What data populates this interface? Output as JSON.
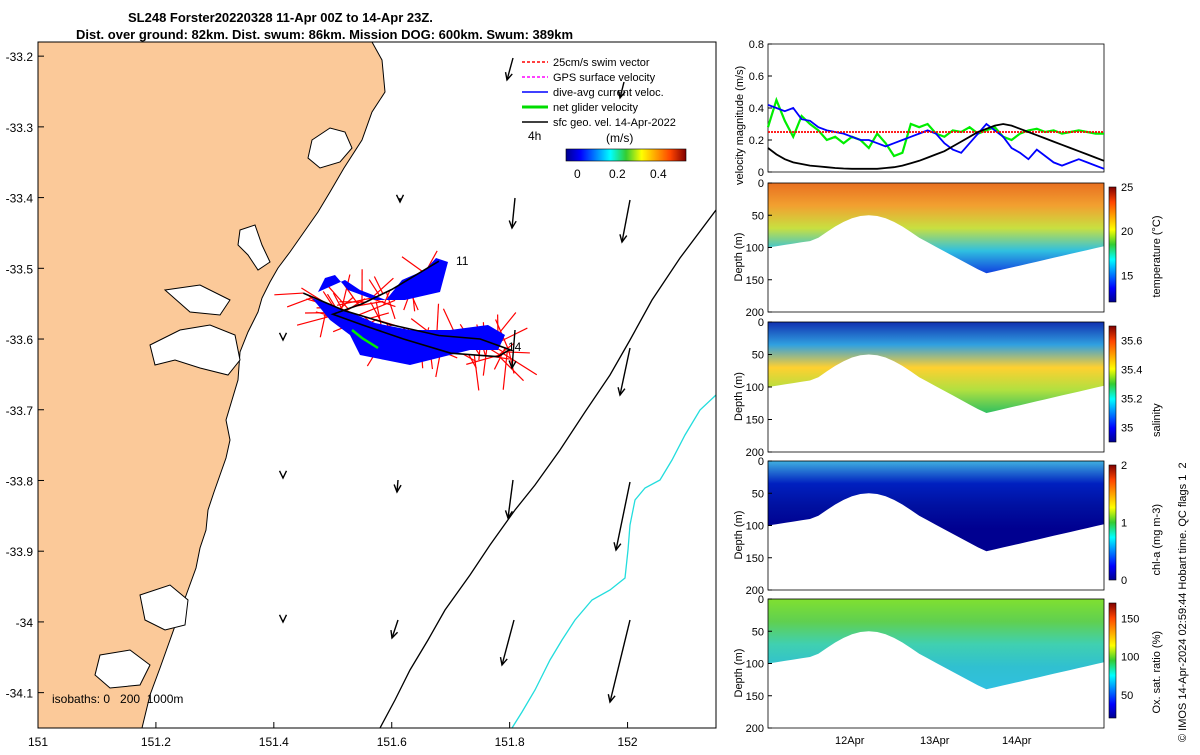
{
  "title": {
    "line1": "SL248 Forster20220328 11-Apr 00Z to 14-Apr 23Z.",
    "line2": "Dist. over ground: 82km. Dist. swum: 86km. Mission DOG: 600km. Swum: 389km"
  },
  "side_caption": "© IMOS 14-Apr-2024 02:59:44 Hobart time. QC flags 1  2",
  "map": {
    "legend": [
      {
        "label": "25cm/s swim vector",
        "color": "#ff0000"
      },
      {
        "label": "GPS surface velocity",
        "color": "#ff00ff"
      },
      {
        "label": "dive-avg current veloc.",
        "color": "#0000ff"
      },
      {
        "label": "net glider velocity",
        "color": "#00dd00"
      },
      {
        "label": "sfc geo. vel. 14-Apr-2022",
        "color": "#000000"
      }
    ],
    "time_label": "4h",
    "colorbar_unit": "(m/s)",
    "colorbar_ticks": [
      "0",
      "0.2",
      "0.4"
    ],
    "isobath_label": "isobaths: 0   200  1000m",
    "day_labels": [
      "11",
      "14"
    ],
    "land_color": "#fbc999"
  },
  "chart_data": [
    {
      "type": "scatter",
      "name": "map",
      "xlim": [
        151,
        152.15
      ],
      "ylim": [
        -34.15,
        -33.18
      ],
      "xticks": [
        151,
        151.2,
        151.4,
        151.6,
        151.8,
        152
      ],
      "xtick_labels": [
        "151",
        "151.2",
        "151.4",
        "151.6",
        "151.8",
        "152"
      ],
      "yticks": [
        -33.2,
        -33.3,
        -33.4,
        -33.5,
        -33.6,
        -33.7,
        -33.8,
        -33.9,
        -34,
        -34.1
      ],
      "ytick_labels": [
        "-33.2",
        "-33.3",
        "-33.4",
        "-33.5",
        "-33.6",
        "-33.7",
        "-33.8",
        "-33.9",
        "-34",
        "-34.1"
      ],
      "glider_track": {
        "lon": [
          151.45,
          151.52,
          151.6,
          151.68,
          151.75,
          151.8,
          151.78,
          151.7,
          151.62,
          151.55,
          151.5,
          151.55,
          151.6,
          151.68
        ],
        "lat": [
          -33.535,
          -33.56,
          -33.58,
          -33.595,
          -33.6,
          -33.615,
          -33.625,
          -33.62,
          -33.6,
          -33.58,
          -33.565,
          -33.55,
          -33.53,
          -33.49
        ]
      }
    },
    {
      "type": "line",
      "name": "velocity",
      "ylabel": "velocity magnitude (m/s)",
      "ylim": [
        0,
        0.8
      ],
      "yticks": [
        0,
        0.2,
        0.4,
        0.6,
        0.8
      ],
      "ytick_labels": [
        "0",
        "0.2",
        "0.4",
        "0.6",
        "0.8"
      ],
      "x": [
        11.0,
        11.1,
        11.2,
        11.3,
        11.4,
        11.5,
        11.6,
        11.7,
        11.8,
        11.9,
        12.0,
        12.1,
        12.2,
        12.3,
        12.4,
        12.5,
        12.6,
        12.7,
        12.8,
        12.9,
        13.0,
        13.1,
        13.2,
        13.3,
        13.4,
        13.5,
        13.6,
        13.7,
        13.8,
        13.9,
        14.0,
        14.1,
        14.2,
        14.3,
        14.4,
        14.5,
        14.6,
        14.7,
        14.8,
        14.9,
        15.0
      ],
      "series": [
        {
          "color": "#00ee00",
          "values": [
            0.28,
            0.45,
            0.32,
            0.22,
            0.35,
            0.3,
            0.26,
            0.2,
            0.22,
            0.18,
            0.22,
            0.2,
            0.15,
            0.24,
            0.18,
            0.1,
            0.12,
            0.3,
            0.28,
            0.3,
            0.24,
            0.22,
            0.26,
            0.25,
            0.28,
            0.24,
            0.26,
            0.28,
            0.22,
            0.2,
            0.24,
            0.26,
            0.27,
            0.25,
            0.26,
            0.24,
            0.25,
            0.26,
            0.25,
            0.24,
            0.24
          ]
        },
        {
          "color": "#0000ff",
          "values": [
            0.42,
            0.4,
            0.38,
            0.4,
            0.33,
            0.32,
            0.28,
            0.26,
            0.25,
            0.24,
            0.22,
            0.2,
            0.2,
            0.18,
            0.16,
            0.18,
            0.2,
            0.22,
            0.24,
            0.26,
            0.24,
            0.18,
            0.14,
            0.12,
            0.18,
            0.24,
            0.3,
            0.26,
            0.22,
            0.15,
            0.12,
            0.08,
            0.14,
            0.1,
            0.06,
            0.04,
            0.06,
            0.08,
            0.06,
            0.04,
            0.02
          ]
        },
        {
          "color": "#ff0000",
          "values": [
            0.25,
            0.25,
            0.25,
            0.25,
            0.25,
            0.25,
            0.25,
            0.25,
            0.25,
            0.25,
            0.25,
            0.25,
            0.25,
            0.25,
            0.25,
            0.25,
            0.25,
            0.25,
            0.25,
            0.25,
            0.25,
            0.25,
            0.25,
            0.25,
            0.25,
            0.25,
            0.25,
            0.25,
            0.25,
            0.25,
            0.25,
            0.25,
            0.25,
            0.25,
            0.25,
            0.25,
            0.25,
            0.25,
            0.25,
            0.25,
            0.25
          ]
        },
        {
          "color": "#000000",
          "values": [
            0.15,
            0.11,
            0.08,
            0.06,
            0.05,
            0.04,
            0.035,
            0.03,
            0.025,
            0.022,
            0.02,
            0.02,
            0.02,
            0.02,
            0.025,
            0.03,
            0.04,
            0.055,
            0.07,
            0.09,
            0.11,
            0.13,
            0.16,
            0.19,
            0.22,
            0.25,
            0.27,
            0.29,
            0.3,
            0.29,
            0.27,
            0.25,
            0.23,
            0.21,
            0.19,
            0.17,
            0.15,
            0.13,
            0.11,
            0.09,
            0.07
          ]
        }
      ]
    },
    {
      "type": "heatmap",
      "name": "temperature",
      "ylabel": "Depth (m)",
      "colorbar_label": "temperature (°C)",
      "colorbar_ticks": [
        "15",
        "20",
        "25"
      ],
      "colorbar_range": [
        12,
        25
      ],
      "ylim": [
        0,
        200
      ],
      "yticks": [
        "0",
        "50",
        "100",
        "150",
        "200"
      ]
    },
    {
      "type": "heatmap",
      "name": "salinity",
      "ylabel": "Depth (m)",
      "colorbar_label": "salinity",
      "colorbar_ticks": [
        "35",
        "35.2",
        "35.4",
        "35.6"
      ],
      "colorbar_range": [
        34.9,
        35.7
      ],
      "ylim": [
        0,
        200
      ],
      "yticks": [
        "0",
        "50",
        "100",
        "150",
        "200"
      ]
    },
    {
      "type": "heatmap",
      "name": "chl-a",
      "ylabel": "Depth (m)",
      "colorbar_label": "chl-a (mg m-3)",
      "colorbar_ticks": [
        "0",
        "1",
        "2"
      ],
      "colorbar_range": [
        0,
        2
      ],
      "ylim": [
        0,
        200
      ],
      "yticks": [
        "0",
        "50",
        "100",
        "150",
        "200"
      ]
    },
    {
      "type": "heatmap",
      "name": "oxygen",
      "ylabel": "Depth (m)",
      "colorbar_label": "Ox. sat. ratio (%)",
      "colorbar_ticks": [
        "50",
        "100",
        "150"
      ],
      "colorbar_range": [
        20,
        170
      ],
      "ylim": [
        0,
        200
      ],
      "yticks": [
        "0",
        "50",
        "100",
        "150",
        "200"
      ],
      "xtick_labels": [
        "12Apr",
        "13Apr",
        "14Apr"
      ]
    }
  ]
}
